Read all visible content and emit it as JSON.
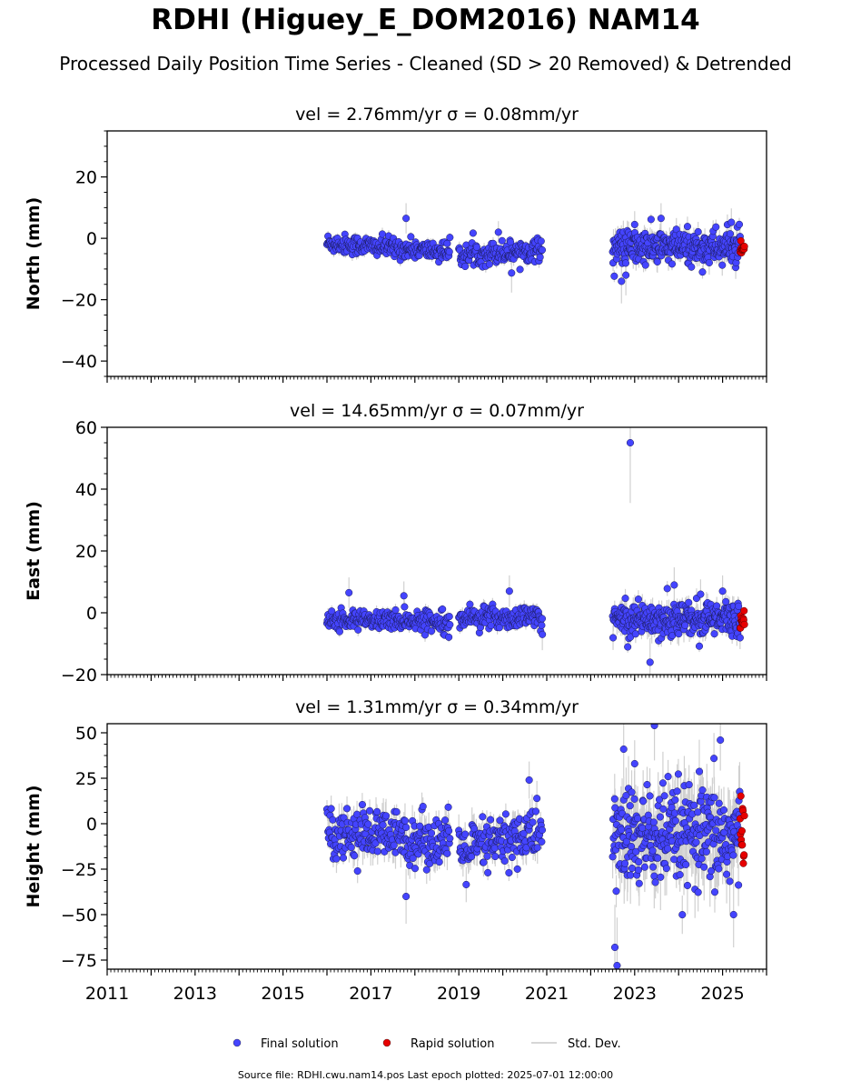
{
  "title": "RDHI (Higuey_E_DOM2016) NAM14",
  "subtitle": "Processed Daily Position Time Series - Cleaned (SD > 20 Removed) & Detrended",
  "source_note": "Source file: RDHI.cwu.nam14.pos  Last epoch plotted: 2025-07-01 12:00:00",
  "colors": {
    "final": "#4444ff",
    "rapid": "#e60000",
    "stddev": "#c8c8c8"
  },
  "chart_data": {
    "type": "scatter",
    "xlim": [
      2011.0,
      2026.0
    ],
    "xticks": [
      "2011",
      "2013",
      "2015",
      "2017",
      "2019",
      "2021",
      "2023",
      "2025"
    ],
    "xtick_values": [
      2011,
      2013,
      2015,
      2017,
      2019,
      2021,
      2023,
      2025
    ],
    "legend": {
      "position": "bottom-center",
      "entries": [
        "Final solution",
        "Rapid solution",
        "Std. Dev."
      ]
    },
    "panels": [
      {
        "ylabel": "North (mm)",
        "title": "vel = 2.76mm/yr   σ = 0.08mm/yr",
        "ylim": [
          -45,
          35
        ],
        "yticks": [
          -40,
          -20,
          0,
          20
        ],
        "ytick_labels": [
          "−40",
          "−20",
          "0",
          "20"
        ],
        "segments": [
          {
            "x_start": 2016.0,
            "x_end": 2018.8,
            "step": 0.012,
            "mean": -3,
            "trend": -1.5,
            "spread": 1.6,
            "sd": 1.4
          },
          {
            "x_start": 2019.0,
            "x_end": 2020.9,
            "step": 0.012,
            "mean": -4.5,
            "trend": 1.0,
            "spread": 1.8,
            "sd": 1.6
          },
          {
            "x_start": 2022.5,
            "x_end": 2025.4,
            "step": 0.009,
            "mean": -3,
            "trend": 0.0,
            "spread": 2.8,
            "sd": 2.6
          }
        ],
        "outliers": [
          {
            "x": 2017.8,
            "y": 6.5
          },
          {
            "x": 2020.2,
            "y": -11.3
          },
          {
            "x": 2019.9,
            "y": 2.0
          },
          {
            "x": 2022.7,
            "y": -14.0
          },
          {
            "x": 2022.8,
            "y": -12.0
          },
          {
            "x": 2023.6,
            "y": 6.5
          },
          {
            "x": 2025.2,
            "y": 5.2
          },
          {
            "x": 2023.0,
            "y": 4.5
          }
        ],
        "rapid": {
          "x_start": 2025.4,
          "x_end": 2025.5,
          "mean": -4,
          "spread": 1.0
        }
      },
      {
        "ylabel": "East (mm)",
        "title": "vel = 14.65mm/yr   σ = 0.07mm/yr",
        "ylim": [
          -20,
          60
        ],
        "yticks": [
          -20,
          0,
          20,
          40,
          60
        ],
        "ytick_labels": [
          "−20",
          "0",
          "20",
          "40",
          "60"
        ],
        "segments": [
          {
            "x_start": 2016.0,
            "x_end": 2018.8,
            "step": 0.012,
            "mean": -2.5,
            "trend": 0.0,
            "spread": 1.6,
            "sd": 1.5
          },
          {
            "x_start": 2019.0,
            "x_end": 2020.9,
            "step": 0.012,
            "mean": -1.5,
            "trend": 0.0,
            "spread": 1.8,
            "sd": 1.6
          },
          {
            "x_start": 2022.5,
            "x_end": 2025.4,
            "step": 0.009,
            "mean": -2,
            "trend": 0.0,
            "spread": 2.8,
            "sd": 2.8
          }
        ],
        "outliers": [
          {
            "x": 2022.9,
            "y": 55.0
          },
          {
            "x": 2016.5,
            "y": 6.5
          },
          {
            "x": 2017.75,
            "y": 5.5
          },
          {
            "x": 2020.15,
            "y": 7.0
          },
          {
            "x": 2023.35,
            "y": -16.0
          },
          {
            "x": 2023.9,
            "y": 9.0
          },
          {
            "x": 2025.0,
            "y": 7.0
          },
          {
            "x": 2024.5,
            "y": 6.0
          },
          {
            "x": 2020.9,
            "y": -7.0
          }
        ],
        "rapid": {
          "x_start": 2025.4,
          "x_end": 2025.5,
          "mean": -2.5,
          "spread": 1.2
        }
      },
      {
        "ylabel": "Height (mm)",
        "title": "vel = 1.31mm/yr   σ = 0.34mm/yr",
        "ylim": [
          -80,
          55
        ],
        "yticks": [
          -75,
          -50,
          -25,
          0,
          25,
          50
        ],
        "ytick_labels": [
          "−75",
          "−50",
          "−25",
          "0",
          "25",
          "50"
        ],
        "segments": [
          {
            "x_start": 2016.0,
            "x_end": 2018.8,
            "step": 0.012,
            "mean": -7,
            "trend": -3.0,
            "spread": 7.0,
            "sd": 6.5
          },
          {
            "x_start": 2019.0,
            "x_end": 2020.9,
            "step": 0.012,
            "mean": -10,
            "trend": 6.0,
            "spread": 7.5,
            "sd": 6.5
          },
          {
            "x_start": 2022.5,
            "x_end": 2025.4,
            "step": 0.009,
            "mean": -8,
            "trend": 0.0,
            "spread": 14.0,
            "sd": 13.0
          }
        ],
        "outliers": [
          {
            "x": 2017.8,
            "y": -40.0
          },
          {
            "x": 2020.6,
            "y": 24.0
          },
          {
            "x": 2022.55,
            "y": -68.0
          },
          {
            "x": 2022.6,
            "y": -78.0
          },
          {
            "x": 2022.75,
            "y": 41.0
          },
          {
            "x": 2023.45,
            "y": 54.0
          },
          {
            "x": 2024.95,
            "y": 46.0
          },
          {
            "x": 2025.25,
            "y": -50.0
          },
          {
            "x": 2023.0,
            "y": 33.0
          }
        ],
        "rapid": {
          "x_start": 2025.4,
          "x_end": 2025.5,
          "mean": -5,
          "spread": 9.0
        }
      }
    ]
  }
}
